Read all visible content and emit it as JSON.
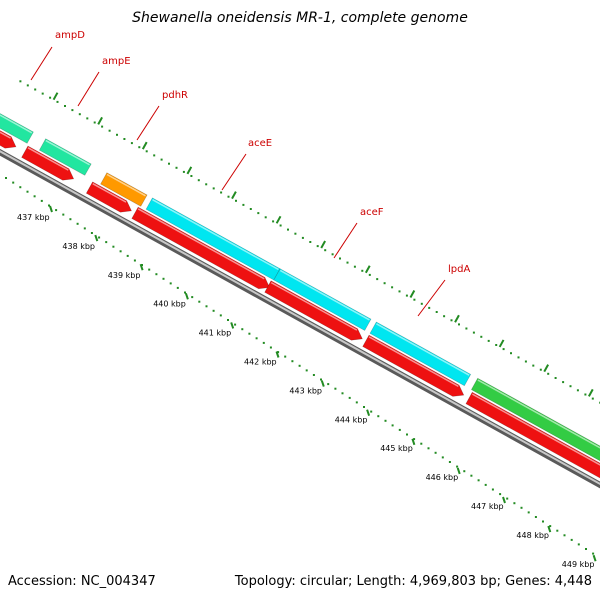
{
  "title": "Shewanella oneidensis MR-1, complete genome",
  "footer": {
    "accession": "Accession: NC_004347",
    "topology": "Topology: circular; Length: 4,969,803 bp; Genes: 4,448"
  },
  "colors": {
    "label_red": "#cc0000",
    "tick_green": "#228b22",
    "track_gray": "#808080",
    "cds_red": "#ee1111",
    "ampD": "#22e6a0",
    "ampE": "#22e6a0",
    "pdhR": "#ff9900",
    "aceE": "#00e6f0",
    "aceF": "#00e6f0",
    "lpdA": "#00e6f0",
    "next_gene": "#33cc44"
  },
  "genes": [
    {
      "name": "ampD",
      "label": "ampD"
    },
    {
      "name": "ampE",
      "label": "ampE"
    },
    {
      "name": "pdhR",
      "label": "pdhR"
    },
    {
      "name": "aceE",
      "label": "aceE"
    },
    {
      "name": "aceF",
      "label": "aceF"
    },
    {
      "name": "lpdA",
      "label": "lpdA"
    }
  ],
  "scale_labels": [
    "437 kbp",
    "438 kbp",
    "439 kbp",
    "440 kbp",
    "441 kbp",
    "442 kbp",
    "443 kbp",
    "444 kbp",
    "445 kbp",
    "446 kbp",
    "447 kbp",
    "448 kbp",
    "449 kbp"
  ]
}
